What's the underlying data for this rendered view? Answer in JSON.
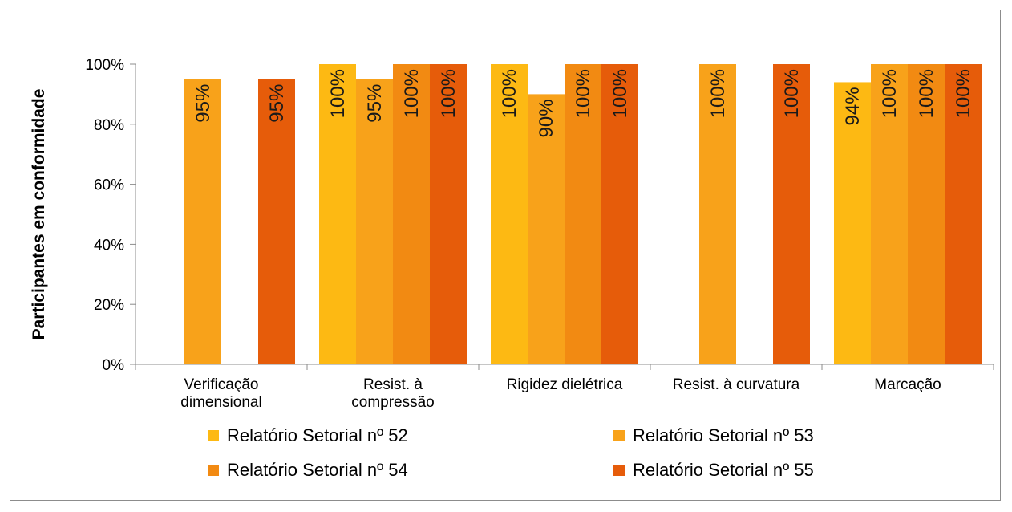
{
  "chart_data": {
    "type": "bar",
    "title": "",
    "xlabel": "",
    "ylabel": "Participantes em conformidade",
    "ylim": [
      0,
      100
    ],
    "yticks": [
      "0%",
      "20%",
      "40%",
      "60%",
      "80%",
      "100%"
    ],
    "ytick_values": [
      0,
      20,
      40,
      60,
      80,
      100
    ],
    "categories": [
      [
        "Verificação",
        "dimensional"
      ],
      [
        "Resist. à",
        "compressão"
      ],
      [
        "Rigidez dielétrica"
      ],
      [
        "Resist. à curvatura"
      ],
      [
        "Marcação"
      ]
    ],
    "series": [
      {
        "name": "Relatório Setorial nº 52",
        "color": "#FDB913",
        "values": [
          null,
          100,
          100,
          null,
          94
        ]
      },
      {
        "name": "Relatório Setorial nº 53",
        "color": "#F8A21A",
        "values": [
          95,
          95,
          90,
          100,
          100
        ]
      },
      {
        "name": "Relatório Setorial nº 54",
        "color": "#F28A12",
        "values": [
          null,
          100,
          100,
          null,
          100
        ]
      },
      {
        "name": "Relatório Setorial nº 55",
        "color": "#E65C0A",
        "values": [
          95,
          100,
          100,
          100,
          100
        ]
      }
    ],
    "data_label_format": "percent",
    "grid": false,
    "legend_position": "bottom"
  }
}
